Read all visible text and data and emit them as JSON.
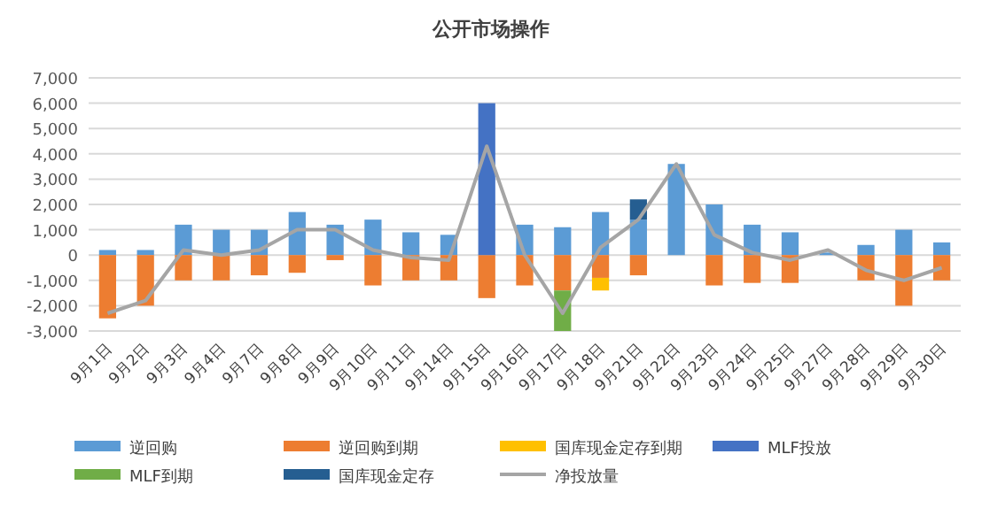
{
  "chart_data": {
    "type": "bar",
    "title": "公开市场操作",
    "stacked": true,
    "categories": [
      "9月1日",
      "9月2日",
      "9月3日",
      "9月4日",
      "9月7日",
      "9月8日",
      "9月9日",
      "9月10日",
      "9月11日",
      "9月14日",
      "9月15日",
      "9月16日",
      "9月17日",
      "9月18日",
      "9月21日",
      "9月22日",
      "9月23日",
      "9月24日",
      "9月25日",
      "9月27日",
      "9月28日",
      "9月29日",
      "9月30日"
    ],
    "series": [
      {
        "name": "逆回购",
        "color": "#5b9bd5",
        "values": [
          200,
          200,
          1200,
          1000,
          1000,
          1700,
          1200,
          1400,
          900,
          800,
          null,
          1200,
          1100,
          1700,
          1400,
          3600,
          2000,
          1200,
          900,
          100,
          400,
          1000,
          500
        ]
      },
      {
        "name": "逆回购到期",
        "color": "#ed7d31",
        "values": [
          -2500,
          -2000,
          -1000,
          -1000,
          -800,
          -700,
          -200,
          -1200,
          -1000,
          -1000,
          -1700,
          -1200,
          -1400,
          -900,
          -800,
          null,
          -1200,
          -1100,
          -1100,
          null,
          -1000,
          -2000,
          -1000
        ]
      },
      {
        "name": "国库现金定存到期",
        "color": "#ffc000",
        "values": [
          null,
          null,
          null,
          null,
          null,
          null,
          null,
          null,
          null,
          null,
          null,
          null,
          null,
          -500,
          null,
          null,
          null,
          null,
          null,
          null,
          null,
          null,
          null
        ]
      },
      {
        "name": "MLF投放",
        "color": "#4472c4",
        "values": [
          null,
          null,
          null,
          null,
          null,
          null,
          null,
          null,
          null,
          null,
          6000,
          null,
          null,
          null,
          null,
          null,
          null,
          null,
          null,
          null,
          null,
          null,
          null
        ]
      },
      {
        "name": "MLF到期",
        "color": "#70ad47",
        "values": [
          null,
          null,
          null,
          null,
          null,
          null,
          null,
          null,
          null,
          null,
          null,
          null,
          -1600,
          null,
          null,
          null,
          null,
          null,
          null,
          null,
          null,
          null,
          null
        ]
      },
      {
        "name": "国库现金定存",
        "color": "#255e91",
        "values": [
          null,
          null,
          null,
          null,
          null,
          null,
          null,
          null,
          null,
          null,
          null,
          null,
          null,
          null,
          800,
          null,
          null,
          null,
          null,
          null,
          null,
          null,
          null
        ]
      },
      {
        "name": "净投放量",
        "type": "line",
        "color": "#a5a5a5",
        "values": [
          -2300,
          -1800,
          200,
          0,
          200,
          1000,
          1000,
          200,
          -100,
          -200,
          4300,
          0,
          -2300,
          300,
          1400,
          3600,
          800,
          100,
          -200,
          200,
          -600,
          -1000,
          -500
        ]
      }
    ],
    "ylim": [
      -3000,
      7000
    ],
    "yticks": [
      {
        "value": -3000,
        "label": "-3,000"
      },
      {
        "value": -2000,
        "label": "-2,000"
      },
      {
        "value": -1000,
        "label": "-1,000"
      },
      0,
      {
        "value": 1000,
        "label": "1,000"
      },
      {
        "value": 2000,
        "label": "2,000"
      },
      {
        "value": 3000,
        "label": "3,000"
      },
      {
        "value": 4000,
        "label": "4,000"
      },
      {
        "value": 5000,
        "label": "5,000"
      },
      {
        "value": 6000,
        "label": "6,000"
      },
      {
        "value": 7000,
        "label": "7,000"
      }
    ],
    "grid": "y",
    "legend": "bottom",
    "marker": "none",
    "line_style": "solid"
  }
}
